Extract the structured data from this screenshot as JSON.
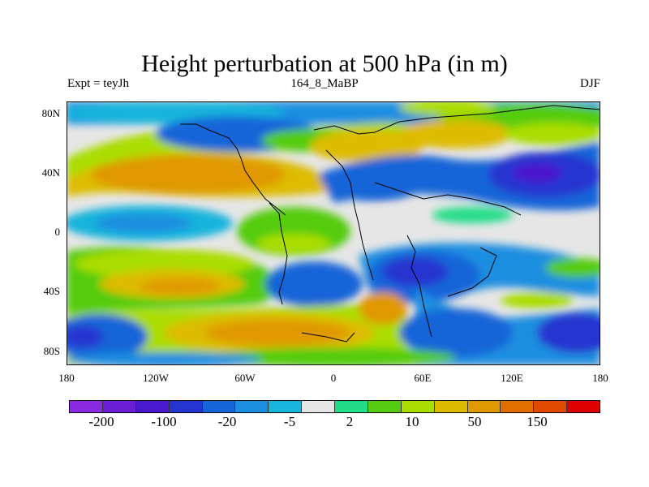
{
  "title": "Height perturbation at 500 hPa (in m)",
  "subtitle_left": "Expt = teyJh",
  "subtitle_center": "164_8_MaBP",
  "subtitle_right": "DJF",
  "lat_ticks": [
    "80N",
    "40N",
    "0",
    "40S",
    "80S"
  ],
  "lon_ticks": [
    "180",
    "120W",
    "60W",
    "0",
    "60E",
    "120E",
    "180"
  ],
  "colorbar": {
    "colors": [
      "#8a2be2",
      "#6a1fd6",
      "#4a18cc",
      "#2535d0",
      "#1565d8",
      "#1b8ee0",
      "#18b4dc",
      "#e6e6e6",
      "#22dd88",
      "#55cc11",
      "#aadd00",
      "#ddbb00",
      "#e09900",
      "#e06f00",
      "#e04a00",
      "#dd0000"
    ],
    "labels": [
      "-200",
      "-100",
      "-20",
      "-5",
      "2",
      "10",
      "50",
      "150"
    ]
  }
}
